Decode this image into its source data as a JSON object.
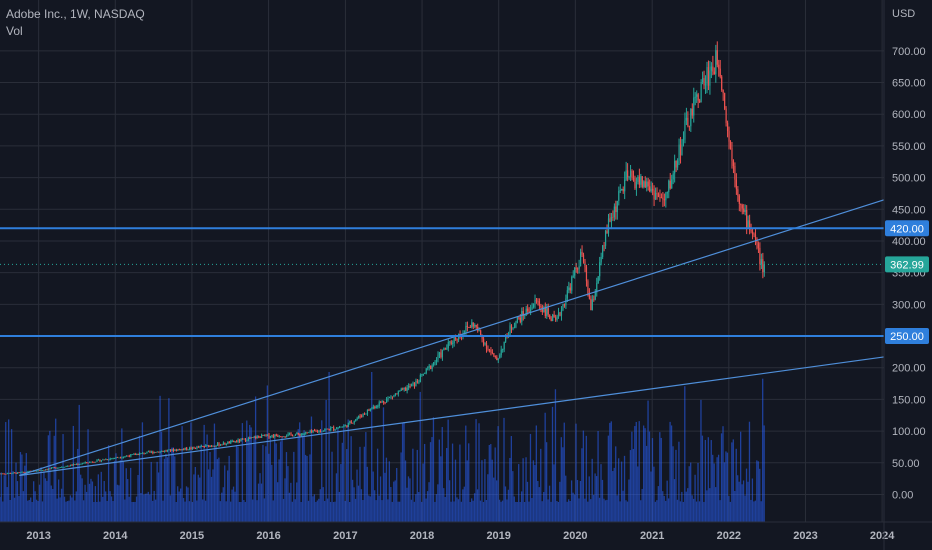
{
  "header": {
    "symbol": "Adobe Inc., 1W, NASDAQ",
    "indicator": "Vol",
    "currency": "USD"
  },
  "colors": {
    "background": "#131722",
    "grid": "#2a2e39",
    "axis_text": "#b2b5be",
    "up": "#26a69a",
    "down": "#ef5350",
    "volume": "#2962ff",
    "trendline": "#4f8fda",
    "level_line": "#2f7fdc",
    "price_label_bg": "#26a69a",
    "level_label_bg": "#2f7fdc"
  },
  "chart_data": {
    "type": "candlestick",
    "interval": "1W",
    "ylabel": "USD",
    "ylim": [
      -25,
      725
    ],
    "grid": true,
    "y_ticks": [
      "700.00",
      "650.00",
      "600.00",
      "550.00",
      "500.00",
      "450.00",
      "400.00",
      "350.00",
      "300.00",
      "250.00",
      "200.00",
      "150.00",
      "100.00",
      "50.00",
      "0.00"
    ],
    "x_ticks": [
      "2013",
      "2014",
      "2015",
      "2016",
      "2017",
      "2018",
      "2019",
      "2020",
      "2021",
      "2022",
      "2023",
      "2024"
    ],
    "xlim": [
      "2012-07-01",
      "2024-01-10"
    ],
    "last_price": "362.99",
    "horizontal_levels": [
      {
        "label": "420.00",
        "value": 420
      },
      {
        "label": "250.00",
        "value": 250
      }
    ],
    "trendlines": [
      {
        "from": [
          "2012-10-01",
          30
        ],
        "to": [
          "2024-01-10",
          465
        ]
      },
      {
        "from": [
          "2012-10-01",
          30
        ],
        "to": [
          "2024-01-10",
          217
        ]
      }
    ],
    "price_path": [
      [
        "2012-07-01",
        33
      ],
      [
        "2012-10-01",
        34
      ],
      [
        "2013-01-01",
        38
      ],
      [
        "2013-06-01",
        46
      ],
      [
        "2014-01-01",
        58
      ],
      [
        "2014-06-01",
        66
      ],
      [
        "2015-01-01",
        73
      ],
      [
        "2015-06-01",
        80
      ],
      [
        "2015-12-01",
        92
      ],
      [
        "2016-06-01",
        95
      ],
      [
        "2017-01-01",
        108
      ],
      [
        "2017-06-01",
        142
      ],
      [
        "2017-12-01",
        175
      ],
      [
        "2018-06-01",
        245
      ],
      [
        "2018-09-01",
        270
      ],
      [
        "2018-12-20",
        210
      ],
      [
        "2019-03-01",
        265
      ],
      [
        "2019-07-01",
        305
      ],
      [
        "2019-10-01",
        270
      ],
      [
        "2020-02-01",
        380
      ],
      [
        "2020-03-16",
        290
      ],
      [
        "2020-06-01",
        420
      ],
      [
        "2020-09-01",
        500
      ],
      [
        "2020-12-01",
        490
      ],
      [
        "2021-03-01",
        460
      ],
      [
        "2021-06-01",
        570
      ],
      [
        "2021-09-01",
        650
      ],
      [
        "2021-11-15",
        690
      ],
      [
        "2022-01-01",
        560
      ],
      [
        "2022-03-01",
        450
      ],
      [
        "2022-05-01",
        410
      ],
      [
        "2022-06-15",
        350
      ],
      [
        "2022-06-24",
        363
      ]
    ],
    "volume_axis_max": 300
  }
}
